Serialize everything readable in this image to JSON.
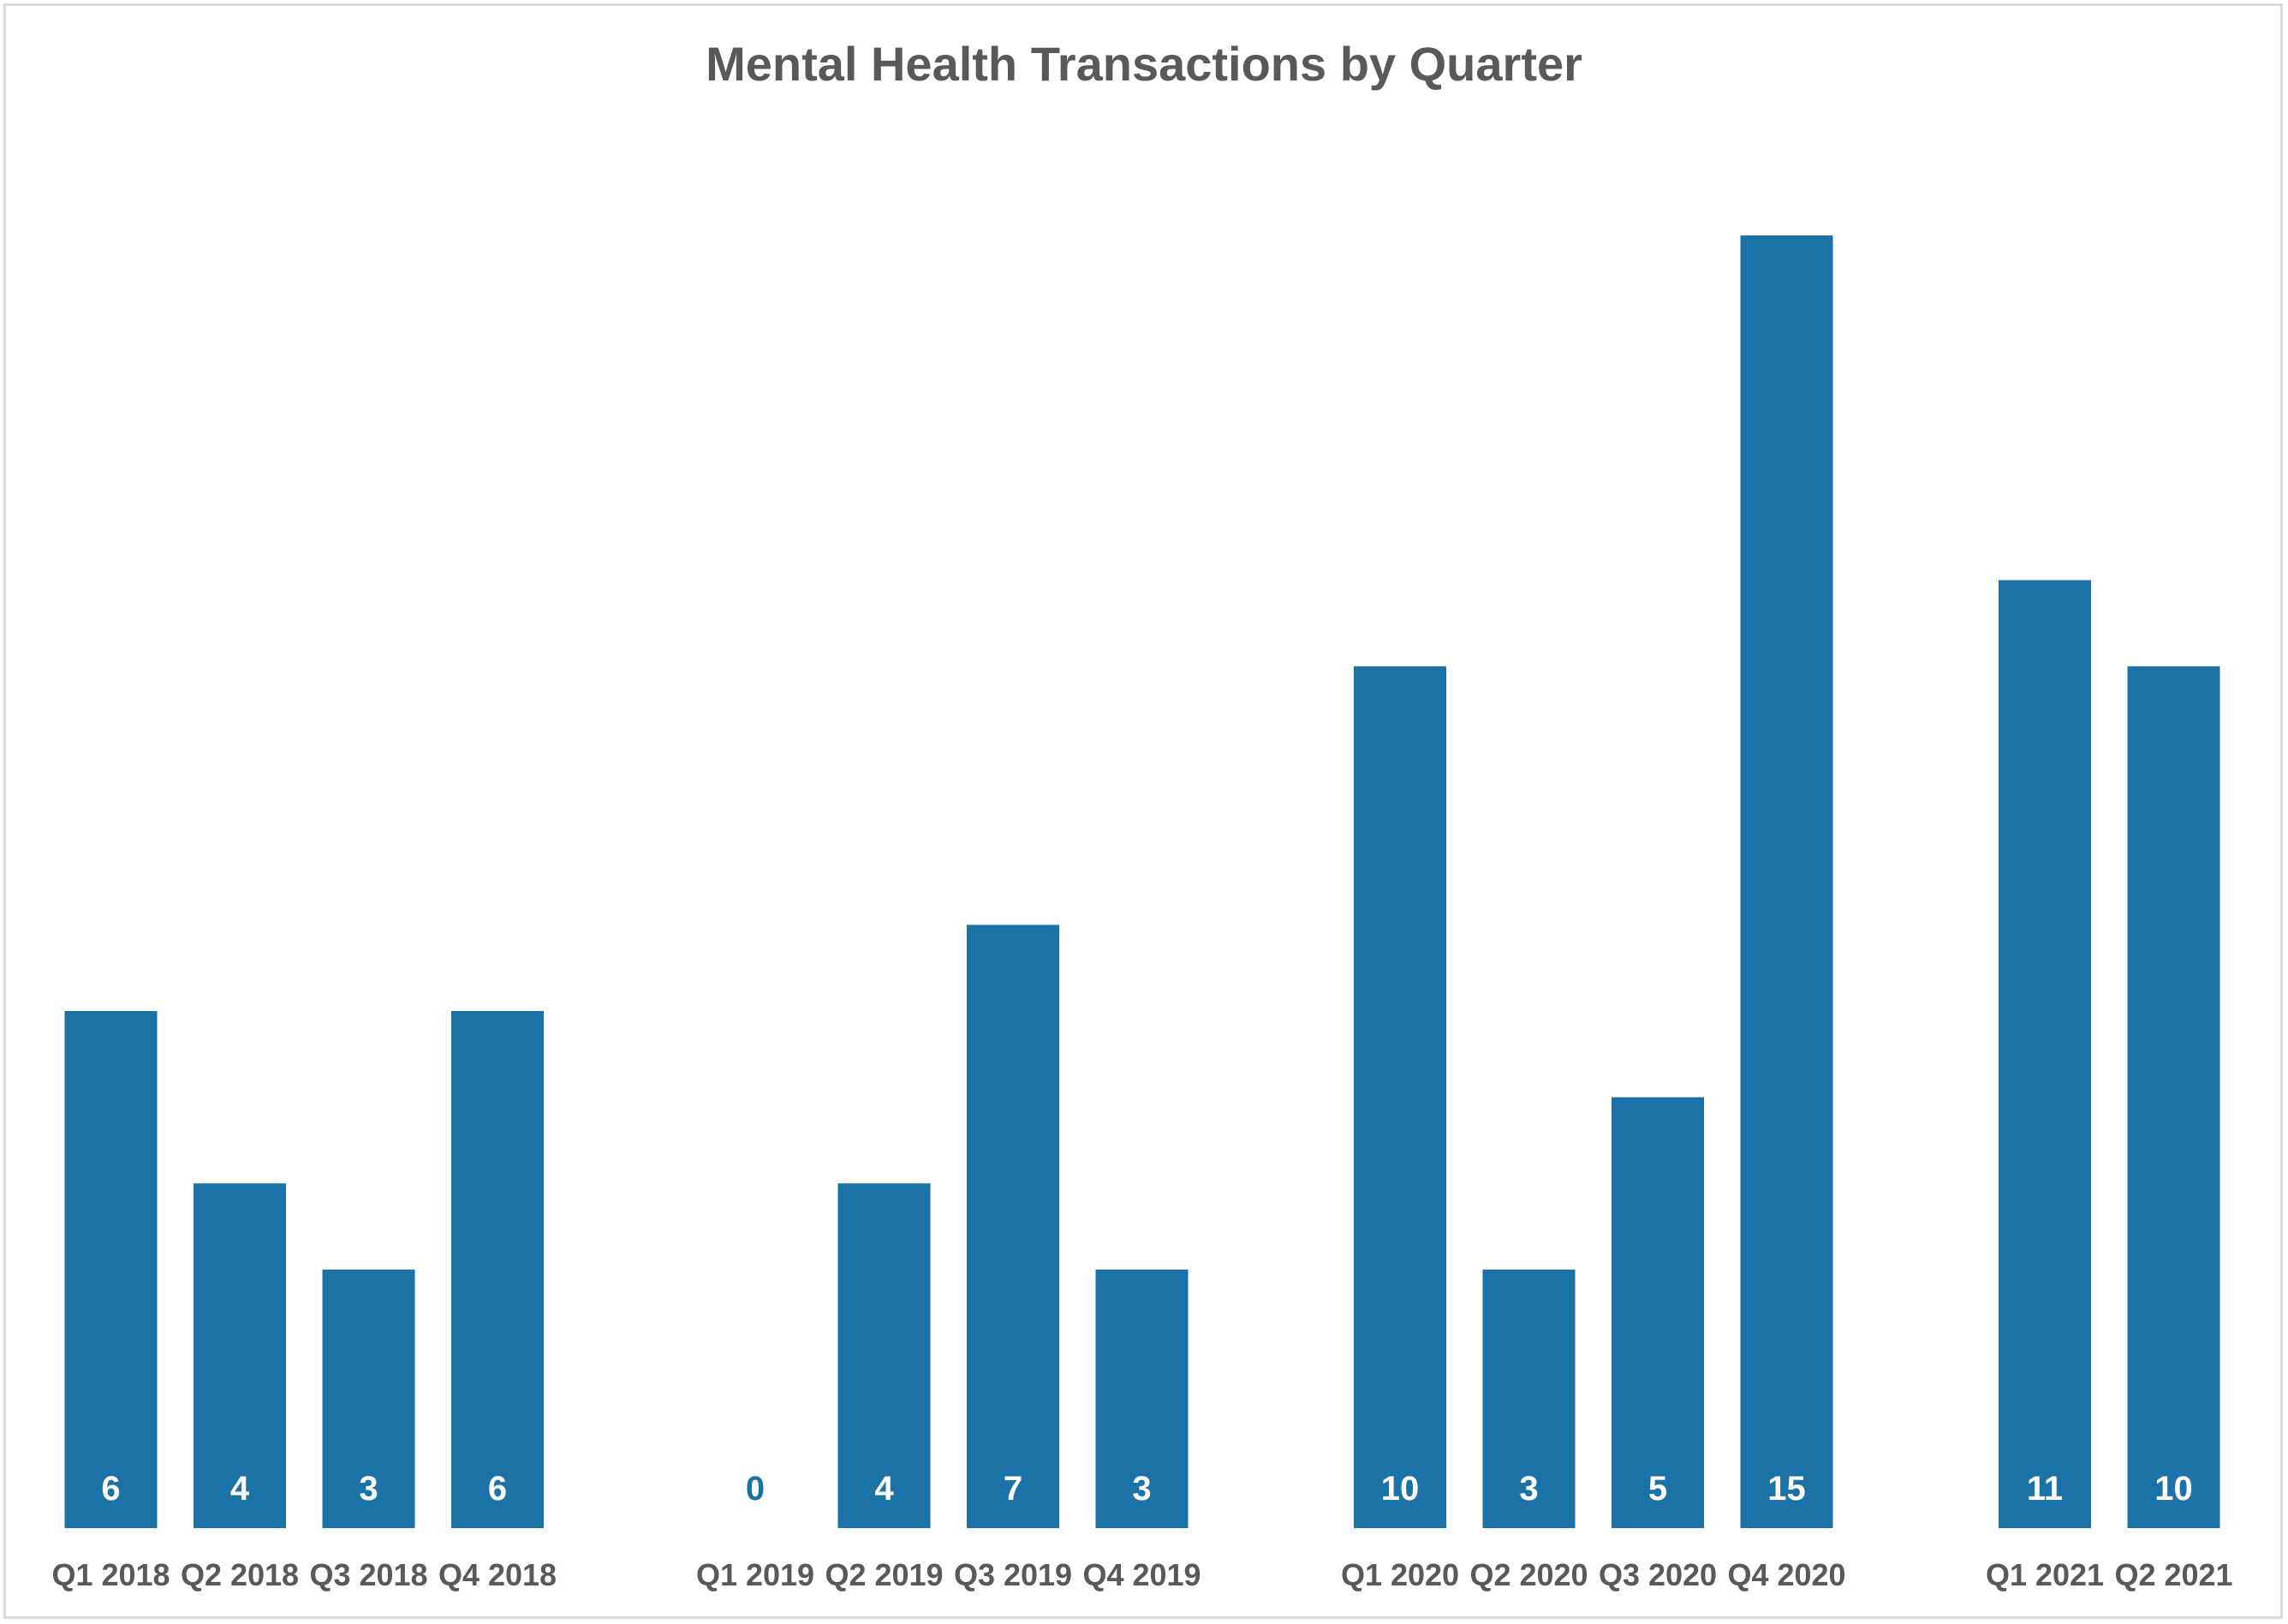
{
  "chart_data": {
    "type": "bar",
    "title": "Mental Health Transactions by Quarter",
    "xlabel": "",
    "ylabel": "",
    "ylim": [
      0,
      15
    ],
    "grid": false,
    "legend": "none",
    "bar_color": "#1b72a6",
    "label_color_inside": "#ffffff",
    "label_color_zero": "#1b72a6",
    "axis_text_color": "#595959",
    "categories": [
      "Q1 2018",
      "Q2 2018",
      "Q3 2018",
      "Q4 2018",
      "Q1 2019",
      "Q2 2019",
      "Q3 2019",
      "Q4 2019",
      "Q1 2020",
      "Q2 2020",
      "Q3 2020",
      "Q4 2020",
      "Q1 2021",
      "Q2 2021"
    ],
    "groups": [
      {
        "year": "2018",
        "categories": [
          "Q1 2018",
          "Q2 2018",
          "Q3 2018",
          "Q4 2018"
        ]
      },
      {
        "year": "2019",
        "categories": [
          "Q1 2019",
          "Q2 2019",
          "Q3 2019",
          "Q4 2019"
        ]
      },
      {
        "year": "2020",
        "categories": [
          "Q1 2020",
          "Q2 2020",
          "Q3 2020",
          "Q4 2020"
        ]
      },
      {
        "year": "2021",
        "categories": [
          "Q1 2021",
          "Q2 2021"
        ]
      }
    ],
    "values": [
      6,
      4,
      3,
      6,
      0,
      4,
      7,
      3,
      10,
      3,
      5,
      15,
      11,
      10
    ]
  }
}
